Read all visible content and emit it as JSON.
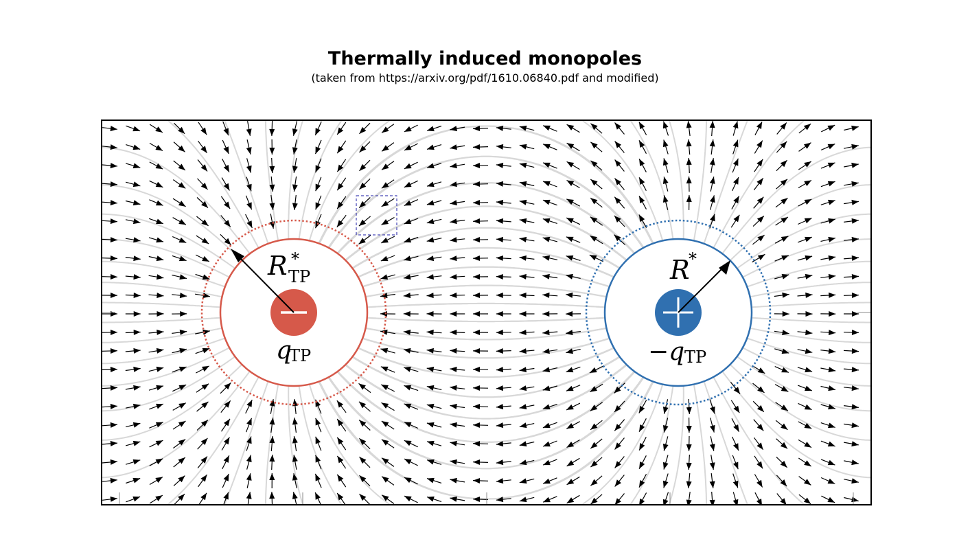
{
  "title": "Thermally induced monopoles",
  "subtitle": "(taken from https://arxiv.org/pdf/1610.06840.pdf and modified)",
  "colors": {
    "negative_charge": "#d6594a",
    "positive_charge": "#3070b0",
    "field_lines": "#d8d8d8",
    "arrows": "#000000",
    "selection_box": "#1a1aa6"
  },
  "left_charge": {
    "symbol": "−",
    "radius_label": "R",
    "radius_sup": "*",
    "radius_sub": "TP",
    "charge_label": "q",
    "charge_sub": "TP"
  },
  "right_charge": {
    "symbol": "+",
    "radius_label": "R",
    "radius_sup": "*",
    "charge_label": "−q",
    "charge_sub": "TP"
  }
}
